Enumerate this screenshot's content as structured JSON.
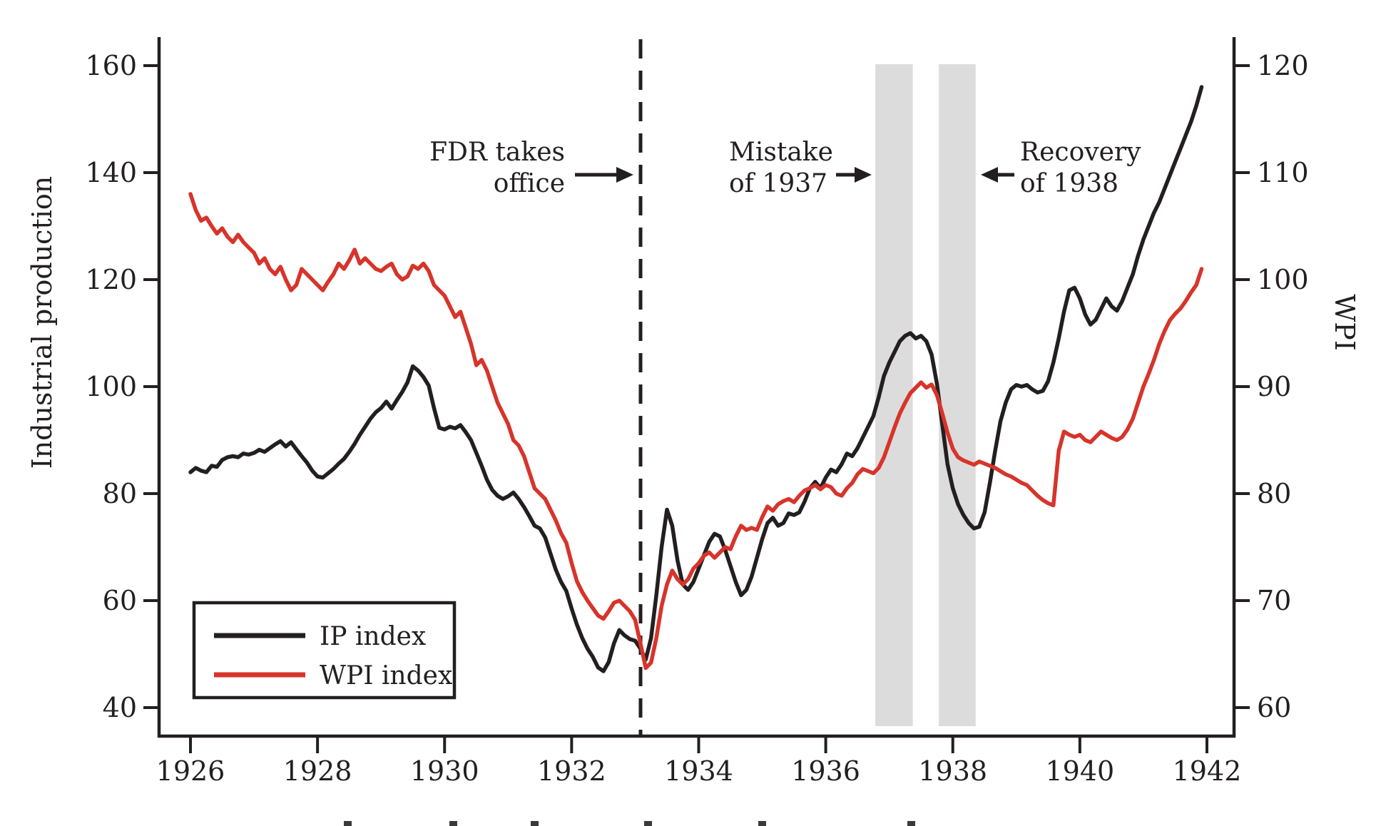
{
  "figure": {
    "colors": {
      "ip_line": "#231f20",
      "wpi_line": "#d7342b",
      "band_fill": "#dcdcdc",
      "axis": "#231f20",
      "text": "#231f20",
      "background": "#ffffff"
    },
    "left_axis_title": "Industrial production",
    "right_axis_title": "WPI",
    "legend": {
      "items": [
        {
          "label": "IP index",
          "color": "#231f20"
        },
        {
          "label": "WPI index",
          "color": "#d7342b"
        }
      ]
    },
    "annotations": [
      {
        "id": "fdr",
        "lines": [
          "FDR takes",
          "office"
        ],
        "arrow_dir": "right"
      },
      {
        "id": "mistake",
        "lines": [
          "Mistake",
          "of 1937"
        ],
        "arrow_dir": "right"
      },
      {
        "id": "recovery",
        "lines": [
          "Recovery",
          "of 1938"
        ],
        "arrow_dir": "left"
      }
    ],
    "cropped_caption_fragment_positions": [
      482,
      630,
      744,
      903,
      1063,
      1272
    ]
  },
  "chart_data": {
    "type": "line",
    "title": "",
    "xlabel": "",
    "x_range": [
      1925.5,
      1942.45
    ],
    "x_ticks": [
      1926,
      1928,
      1930,
      1932,
      1934,
      1936,
      1938,
      1940,
      1942
    ],
    "left_axis": {
      "label": "Industrial production",
      "range": [
        40,
        160
      ],
      "ticks": [
        40,
        60,
        80,
        100,
        120,
        140,
        160
      ]
    },
    "right_axis": {
      "label": "WPI",
      "range": [
        60,
        120
      ],
      "ticks": [
        60,
        70,
        80,
        90,
        100,
        110,
        120
      ]
    },
    "grid": false,
    "legend_position": "lower-left-inside",
    "event_line": {
      "year": 1933.085,
      "style": "dashed",
      "label": "FDR takes office"
    },
    "shaded_bands": [
      {
        "from": 1936.78,
        "to": 1937.37,
        "label": "Mistake of 1937"
      },
      {
        "from": 1937.78,
        "to": 1938.36,
        "label": "Recovery of 1938"
      }
    ],
    "x_start_year": 1926,
    "points_per_year": 12,
    "series": [
      {
        "name": "IP index",
        "axis": "left",
        "color": "#231f20",
        "values": [
          84.0,
          84.8,
          84.3,
          84.0,
          85.2,
          85.0,
          86.3,
          86.8,
          87.0,
          86.8,
          87.5,
          87.3,
          87.6,
          88.2,
          87.8,
          88.5,
          89.2,
          89.8,
          88.8,
          89.6,
          88.3,
          87.0,
          85.8,
          84.3,
          83.2,
          83.0,
          83.8,
          84.6,
          85.6,
          86.5,
          87.8,
          89.3,
          91.0,
          92.5,
          94.0,
          95.2,
          96.0,
          97.2,
          95.9,
          97.5,
          99.0,
          100.8,
          103.8,
          103.0,
          101.8,
          100.2,
          96.0,
          92.3,
          92.0,
          92.5,
          92.2,
          92.8,
          91.5,
          90.0,
          87.6,
          85.2,
          82.6,
          80.7,
          79.6,
          79.0,
          79.5,
          80.2,
          79.0,
          77.5,
          75.8,
          74.0,
          73.5,
          71.8,
          68.8,
          65.8,
          63.5,
          61.8,
          58.5,
          55.5,
          53.0,
          51.0,
          49.5,
          47.5,
          46.8,
          48.5,
          52.0,
          54.5,
          53.5,
          52.8,
          52.5,
          51.0,
          49.0,
          53.0,
          61.0,
          70.0,
          77.0,
          74.0,
          67.5,
          63.0,
          62.0,
          63.5,
          66.0,
          68.5,
          71.0,
          72.5,
          72.0,
          69.5,
          66.5,
          63.5,
          61.0,
          62.0,
          64.5,
          68.0,
          71.5,
          74.5,
          75.5,
          74.0,
          74.5,
          76.3,
          76.0,
          76.5,
          78.5,
          81.0,
          82.2,
          81.0,
          83.0,
          84.5,
          84.0,
          85.5,
          87.5,
          87.0,
          88.5,
          90.5,
          92.5,
          94.5,
          98.0,
          102.0,
          104.5,
          106.5,
          108.5,
          109.5,
          110.0,
          109.0,
          109.5,
          108.5,
          106.0,
          100.5,
          93.0,
          85.5,
          81.0,
          78.0,
          76.0,
          74.5,
          73.5,
          73.8,
          76.5,
          82.0,
          88.0,
          93.5,
          97.0,
          99.5,
          100.3,
          100.0,
          100.3,
          99.5,
          98.9,
          99.2,
          101.0,
          104.5,
          109.0,
          114.0,
          118.0,
          118.5,
          116.5,
          113.5,
          111.6,
          112.5,
          114.5,
          116.5,
          115.0,
          114.2,
          116.0,
          118.5,
          121.0,
          124.5,
          127.5,
          130.0,
          132.5,
          134.5,
          137.0,
          139.5,
          142.0,
          144.5,
          147.0,
          149.5,
          152.5,
          156.0
        ]
      },
      {
        "name": "WPI index",
        "axis": "right",
        "color": "#d7342b",
        "values": [
          108.0,
          106.5,
          105.5,
          105.8,
          105.0,
          104.3,
          104.8,
          104.0,
          103.5,
          104.2,
          103.5,
          103.0,
          102.5,
          101.5,
          102.0,
          101.0,
          100.5,
          101.2,
          100.0,
          99.0,
          99.5,
          101.0,
          100.5,
          100.0,
          99.5,
          99.0,
          99.8,
          100.5,
          101.5,
          101.0,
          101.8,
          102.8,
          101.5,
          102.0,
          101.5,
          101.0,
          100.8,
          101.2,
          101.5,
          100.5,
          100.0,
          100.3,
          101.3,
          101.0,
          101.5,
          100.8,
          99.5,
          99.0,
          98.5,
          97.5,
          96.5,
          97.0,
          95.5,
          94.0,
          92.0,
          92.5,
          91.5,
          90.0,
          88.5,
          87.5,
          86.5,
          85.0,
          84.5,
          83.5,
          82.0,
          80.5,
          80.0,
          79.5,
          78.5,
          77.5,
          76.3,
          75.4,
          73.5,
          71.8,
          70.8,
          70.0,
          69.3,
          68.6,
          68.3,
          69.0,
          69.8,
          70.0,
          69.5,
          69.0,
          68.2,
          66.0,
          63.7,
          64.2,
          66.5,
          69.5,
          71.5,
          72.8,
          72.0,
          71.5,
          72.0,
          73.0,
          73.5,
          74.2,
          74.5,
          74.0,
          74.5,
          75.0,
          74.8,
          76.0,
          77.0,
          76.6,
          76.8,
          76.6,
          77.8,
          78.8,
          78.4,
          79.0,
          79.3,
          79.5,
          79.2,
          79.8,
          80.3,
          80.5,
          80.8,
          80.4,
          80.8,
          80.6,
          80.0,
          79.8,
          80.5,
          81.0,
          81.8,
          82.3,
          82.1,
          81.9,
          82.4,
          83.4,
          84.8,
          86.2,
          87.5,
          88.5,
          89.4,
          89.9,
          90.4,
          89.9,
          90.2,
          89.2,
          87.5,
          85.7,
          84.2,
          83.4,
          83.1,
          82.9,
          82.7,
          83.0,
          82.8,
          82.6,
          82.4,
          82.1,
          81.8,
          81.6,
          81.3,
          81.0,
          80.8,
          80.3,
          79.8,
          79.4,
          79.1,
          78.9,
          84.0,
          85.8,
          85.5,
          85.3,
          85.5,
          85.0,
          84.8,
          85.3,
          85.8,
          85.5,
          85.2,
          85.0,
          85.3,
          86.0,
          87.0,
          88.5,
          90.0,
          91.2,
          92.5,
          94.0,
          95.2,
          96.2,
          96.8,
          97.3,
          98.0,
          98.8,
          99.5,
          101.0
        ]
      }
    ]
  }
}
